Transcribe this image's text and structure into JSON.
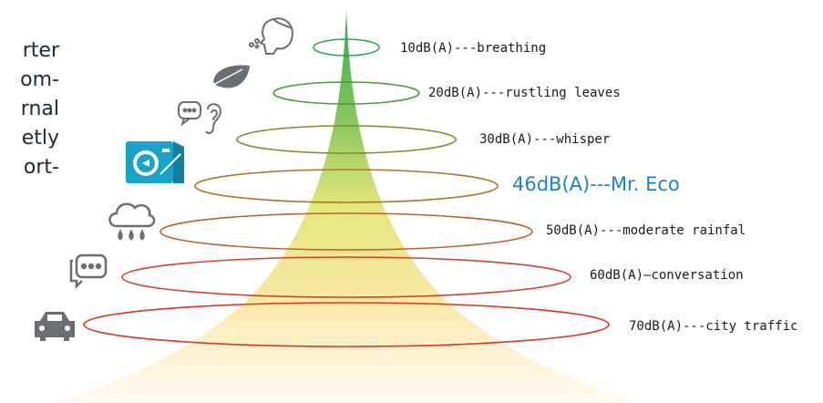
{
  "intro_text_fragments": [
    "rter",
    "om-",
    "rnal",
    "etly",
    "ort-"
  ],
  "levels": [
    {
      "label": "10dB(A)---breathing",
      "icon": "person-breathing-icon",
      "ring_color": "#2aa84a"
    },
    {
      "label": "20dB(A)---rustling leaves",
      "icon": "leaf-icon",
      "ring_color": "#4a9a3a"
    },
    {
      "label": "30dB(A)---whisper",
      "icon": "ear-chat-icon",
      "ring_color": "#7a8e2a"
    },
    {
      "label": "46dB(A)---Mr. Eco",
      "icon": "heat-pump-icon",
      "ring_color": "#a8782a",
      "highlight": true
    },
    {
      "label": "50dB(A)---moderate rainfal",
      "icon": "rain-cloud-icon",
      "ring_color": "#b8622e"
    },
    {
      "label": "60dB(A)—conversation",
      "icon": "speech-bubble-icon",
      "ring_color": "#d0442e"
    },
    {
      "label": "70dB(A)---city traffic",
      "icon": "car-icon",
      "ring_color": "#d83a2e"
    }
  ],
  "colors": {
    "highlight": "#1f82c4",
    "icon": "#6b6f73",
    "heat_pump": "#1aa3c9"
  }
}
